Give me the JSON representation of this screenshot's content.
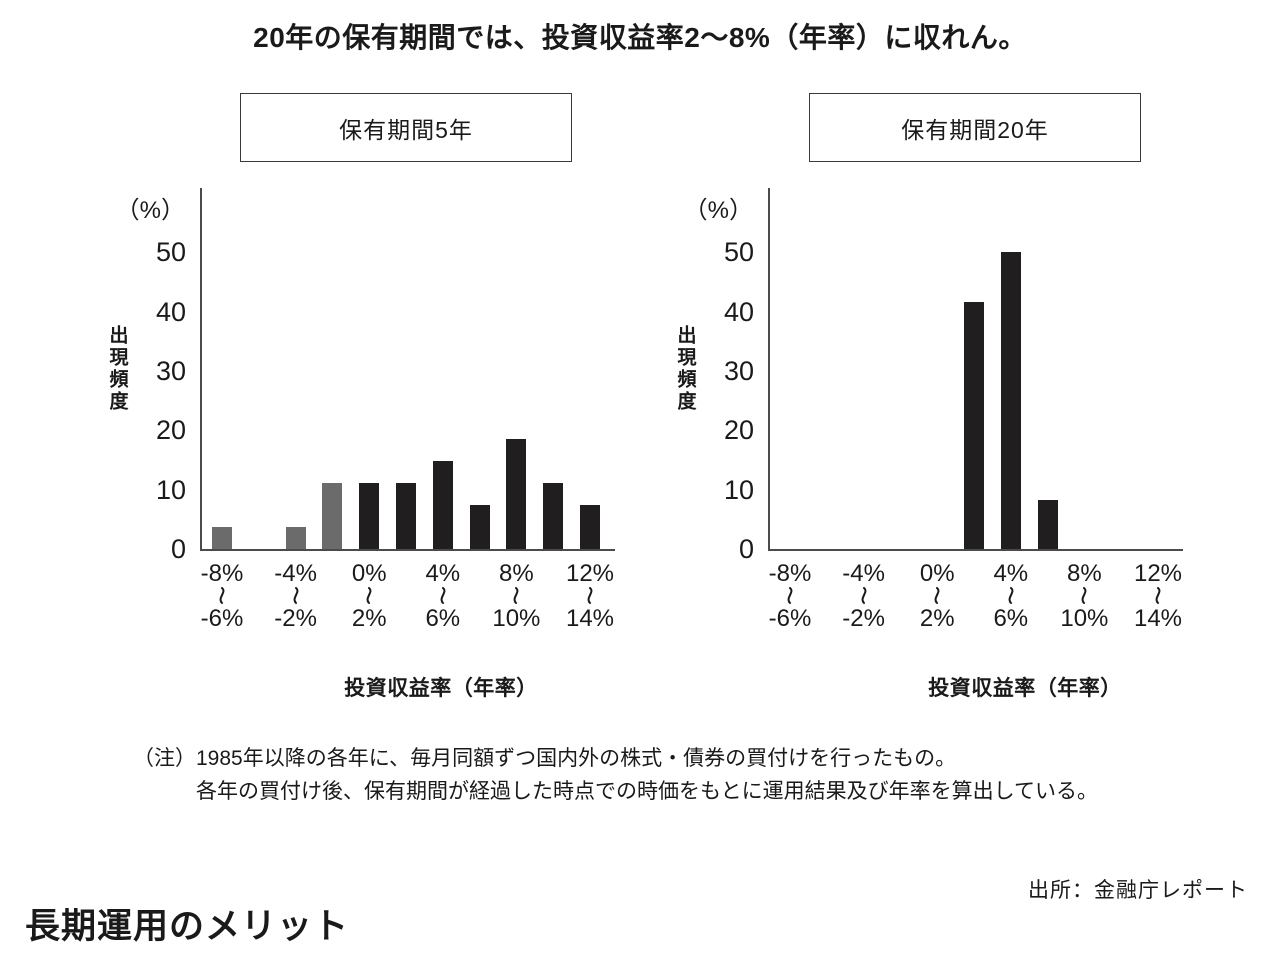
{
  "title": "20年の保有期間では、投資収益率2～8%（年率）に収れん。",
  "note": {
    "label": "（注）",
    "lines": [
      "1985年以降の各年に、毎月同額ずつ国内外の株式・債券の買付けを行ったもの。",
      "各年の買付け後、保有期間が経過した時点での時価をもとに運用結果及び年率を算出している。"
    ]
  },
  "source": "出所：金融庁レポート",
  "caption": "長期運用のメリット",
  "colors": {
    "bar_dark": "#211e1f",
    "bar_gray": "#6b6b6b",
    "axis": "#4b4b4b",
    "text": "#1a1a1a"
  },
  "chart_data": [
    {
      "type": "bar",
      "title": "保有期間5年",
      "ylabel": "出現頻度",
      "y_unit_label": "（%）",
      "xlabel": "投資収益率（年率）",
      "ylim": [
        0,
        50
      ],
      "yticks": [
        0,
        10,
        20,
        30,
        40,
        50
      ],
      "grid": false,
      "legend": "none",
      "categories": [
        "-8%～-6%",
        "-6%～-4%",
        "-4%～-2%",
        "-2%～0%",
        "0%～2%",
        "2%～4%",
        "4%～6%",
        "6%～8%",
        "8%～10%",
        "10%～12%",
        "12%～14%"
      ],
      "values": [
        3.7,
        0,
        3.7,
        11.1,
        11.1,
        11.1,
        14.8,
        7.4,
        18.5,
        11.1,
        7.4
      ],
      "bar_color_keys": [
        "gray",
        "gray",
        "gray",
        "gray",
        "dark",
        "dark",
        "dark",
        "dark",
        "dark",
        "dark",
        "dark"
      ],
      "x_tick_bins": [
        0,
        2,
        4,
        6,
        8,
        10
      ],
      "x_tick_labels": [
        [
          "-8%",
          "-6%"
        ],
        [
          "-4%",
          "-2%"
        ],
        [
          "0%",
          "2%"
        ],
        [
          "4%",
          "6%"
        ],
        [
          "8%",
          "10%"
        ],
        [
          "12%",
          "14%"
        ]
      ]
    },
    {
      "type": "bar",
      "title": "保有期間20年",
      "ylabel": "出現頻度",
      "y_unit_label": "（%）",
      "xlabel": "投資収益率（年率）",
      "ylim": [
        0,
        50
      ],
      "yticks": [
        0,
        10,
        20,
        30,
        40,
        50
      ],
      "grid": false,
      "legend": "none",
      "categories": [
        "-8%～-6%",
        "-6%～-4%",
        "-4%～-2%",
        "-2%～0%",
        "0%～2%",
        "2%～4%",
        "4%～6%",
        "6%～8%",
        "8%～10%",
        "10%～12%",
        "12%～14%"
      ],
      "values": [
        0,
        0,
        0,
        0,
        0,
        41.7,
        50.0,
        8.3,
        0,
        0,
        0
      ],
      "bar_color_keys": [
        "dark",
        "dark",
        "dark",
        "dark",
        "dark",
        "dark",
        "dark",
        "dark",
        "dark",
        "dark",
        "dark"
      ],
      "x_tick_bins": [
        0,
        2,
        4,
        6,
        8,
        10
      ],
      "x_tick_labels": [
        [
          "-8%",
          "-6%"
        ],
        [
          "-4%",
          "-2%"
        ],
        [
          "0%",
          "2%"
        ],
        [
          "4%",
          "6%"
        ],
        [
          "8%",
          "10%"
        ],
        [
          "12%",
          "14%"
        ]
      ]
    }
  ]
}
